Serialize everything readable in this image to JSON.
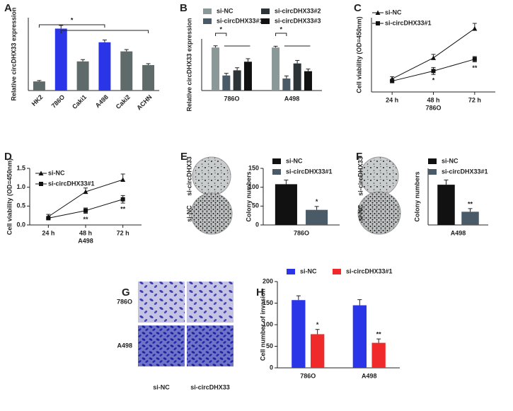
{
  "chart_data": [
    {
      "panel": "A",
      "type": "bar",
      "ylabel": "Relative circDHX33 expression",
      "categories": [
        "HK2",
        "786O",
        "Caki1",
        "A498",
        "Caki2",
        "ACHN"
      ],
      "values": [
        1.0,
        6.8,
        3.2,
        5.3,
        4.3,
        2.8
      ],
      "errors": [
        0.1,
        0.35,
        0.2,
        0.25,
        0.2,
        0.15
      ],
      "colors": [
        "#5f6a6a",
        "#2a35e8",
        "#5f6a6a",
        "#2a35e8",
        "#5f6a6a",
        "#5f6a6a"
      ],
      "ylim": [
        0,
        8
      ],
      "annotations": [
        "*"
      ]
    },
    {
      "panel": "B",
      "type": "bar",
      "ylabel": "Relative circDHX33 expression",
      "categories": [
        "786O",
        "A498"
      ],
      "series": [
        {
          "name": "si-NC",
          "color": "#8a9898",
          "values": [
            1.0,
            1.0
          ],
          "errors": [
            0.04,
            0.03
          ]
        },
        {
          "name": "si-circDHX33#1",
          "color": "#4a5a66",
          "values": [
            0.35,
            0.28
          ],
          "errors": [
            0.05,
            0.06
          ]
        },
        {
          "name": "si-circDHX33#2",
          "color": "#2c3438",
          "values": [
            0.47,
            0.63
          ],
          "errors": [
            0.06,
            0.07
          ]
        },
        {
          "name": "si-circDHX33#3",
          "color": "#111111",
          "values": [
            0.67,
            0.45
          ],
          "errors": [
            0.07,
            0.05
          ]
        }
      ],
      "ylim": [
        0,
        1.2
      ],
      "annotations": [
        "*",
        "*"
      ]
    },
    {
      "panel": "C",
      "type": "line",
      "ylabel": "Cell viability (OD=450nm)",
      "xlabel": "786O",
      "categories": [
        "24 h",
        "48 h",
        "72 h"
      ],
      "series": [
        {
          "name": "si-NC",
          "color": "#111111",
          "marker": "triangle",
          "values": [
            0.3,
            0.78,
            1.45
          ],
          "errors": [
            0.05,
            0.08,
            0.12
          ]
        },
        {
          "name": "si-circDHX33#1",
          "color": "#111111",
          "marker": "square",
          "values": [
            0.25,
            0.48,
            0.75
          ],
          "errors": [
            0.04,
            0.08,
            0.06
          ],
          "marks": [
            null,
            "*",
            "**"
          ]
        }
      ],
      "ylim": [
        0,
        1.7
      ]
    },
    {
      "panel": "D",
      "type": "line",
      "ylabel": "Cell viability (OD=450nm)",
      "xlabel": "A498",
      "categories": [
        "24 h",
        "48 h",
        "72 h"
      ],
      "series": [
        {
          "name": "si-NC",
          "color": "#111111",
          "marker": "triangle",
          "values": [
            0.22,
            0.88,
            1.2
          ],
          "errors": [
            0.06,
            0.1,
            0.15
          ]
        },
        {
          "name": "si-circDHX33#1",
          "color": "#111111",
          "marker": "square",
          "values": [
            0.18,
            0.38,
            0.68
          ],
          "errors": [
            0.04,
            0.07,
            0.1
          ],
          "marks": [
            null,
            "**",
            "**"
          ]
        }
      ],
      "ylim": [
        0,
        1.5
      ],
      "yticks": [
        {
          "value": 0,
          "label": "0.0"
        },
        0.5,
        {
          "value": 1,
          "label": "1.0"
        },
        1.5
      ]
    },
    {
      "panel": "E",
      "type": "bar",
      "ylabel": "Colony numbers",
      "image_labels": [
        "si-circDHX33",
        "si-NC"
      ],
      "categories": [
        "786O"
      ],
      "series": [
        {
          "name": "si-NC",
          "color": "#111111",
          "values": [
            108
          ],
          "errors": [
            11
          ]
        },
        {
          "name": "si-circDHX33#1",
          "color": "#4a5a66",
          "values": [
            40
          ],
          "errors": [
            9
          ],
          "marks": [
            "*"
          ]
        }
      ],
      "ylim": [
        0,
        150
      ],
      "yticks": [
        0,
        50,
        100,
        150
      ]
    },
    {
      "panel": "F",
      "type": "bar",
      "ylabel": "Colony numbers",
      "image_labels": [
        "si-circDHX33",
        "si-NC"
      ],
      "categories": [
        "A498"
      ],
      "series": [
        {
          "name": "si-NC",
          "color": "#111111",
          "values": [
            128
          ],
          "errors": [
            15
          ]
        },
        {
          "name": "si-circDHX33#1",
          "color": "#4a5a66",
          "values": [
            42
          ],
          "errors": [
            10
          ],
          "marks": [
            "**"
          ]
        }
      ],
      "ylim": [
        0,
        180
      ]
    },
    {
      "panel": "G",
      "type": "image",
      "row_labels": [
        "786O",
        "A498"
      ],
      "column_labels": [
        "si-NC",
        "si-circDHX33"
      ]
    },
    {
      "panel": "H",
      "type": "bar",
      "ylabel": "Cell number of invasion",
      "categories": [
        "786O",
        "A498"
      ],
      "series": [
        {
          "name": "si-NC",
          "color": "#2a35e8",
          "values": [
            157,
            145
          ],
          "errors": [
            10,
            13
          ]
        },
        {
          "name": "si-circDHX33#1",
          "color": "#f02a2a",
          "values": [
            78,
            58
          ],
          "errors": [
            11,
            9
          ],
          "marks": [
            "*",
            "**"
          ]
        }
      ],
      "ylim": [
        0,
        200
      ],
      "yticks": [
        0,
        50,
        100,
        150,
        200
      ]
    }
  ]
}
